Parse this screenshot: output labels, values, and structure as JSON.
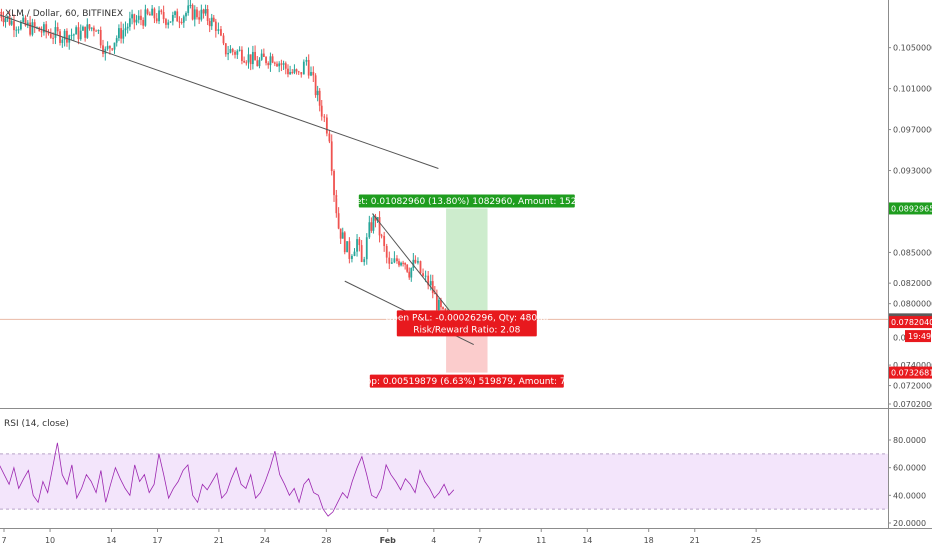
{
  "chart_data": {
    "type": "candlestick",
    "title": "XLM / Dollar, 60, BITFINEX",
    "price_axis": {
      "ticks": [
        {
          "value": 0.105,
          "label": "0.10500000"
        },
        {
          "value": 0.101,
          "label": "0.10100000"
        },
        {
          "value": 0.097,
          "label": "0.09700000"
        },
        {
          "value": 0.093,
          "label": "0.09300000"
        },
        {
          "value": 0.085,
          "label": "0.08500000"
        },
        {
          "value": 0.082,
          "label": "0.08200000"
        },
        {
          "value": 0.08,
          "label": "0.08000000"
        },
        {
          "value": 0.074,
          "label": "0.07400000"
        },
        {
          "value": 0.072,
          "label": "0.07200000"
        },
        {
          "value": 0.0702,
          "label": "0.07020000"
        }
      ],
      "tags": [
        {
          "value": 0.08929656,
          "label": "0.08929656",
          "color": "#1f9d1f"
        },
        {
          "value": 0.07846696,
          "label": "0.07846696",
          "color": "#5b5b5b"
        },
        {
          "value": 0.0782,
          "label": "0.07820400",
          "color": "#e8191e"
        },
        {
          "value": 0.07326817,
          "label": "0.07326817",
          "color": "#e8191e"
        }
      ],
      "countdown": {
        "label": "19:49",
        "color": "#e8191e"
      },
      "clipped_tick": {
        "value": 0.0767,
        "label": "0.07"
      }
    },
    "time_axis": {
      "ticks": [
        {
          "label": "7",
          "day": 7
        },
        {
          "label": "10",
          "day": 10
        },
        {
          "label": "14",
          "day": 14
        },
        {
          "label": "17",
          "day": 17
        },
        {
          "label": "21",
          "day": 21
        },
        {
          "label": "24",
          "day": 24
        },
        {
          "label": "28",
          "day": 28
        },
        {
          "label": "Feb",
          "day": 32
        },
        {
          "label": "4",
          "day": 35
        },
        {
          "label": "7",
          "day": 38
        },
        {
          "label": "11",
          "day": 42
        },
        {
          "label": "14",
          "day": 45
        },
        {
          "label": "18",
          "day": 49
        },
        {
          "label": "21",
          "day": 52
        },
        {
          "label": "25",
          "day": 56
        }
      ]
    },
    "price_path": [
      [
        6.7,
        0.1085
      ],
      [
        7.5,
        0.1075
      ],
      [
        9,
        0.1068
      ],
      [
        10.5,
        0.1062
      ],
      [
        12,
        0.1064
      ],
      [
        13,
        0.1072
      ],
      [
        13.6,
        0.1045
      ],
      [
        14.2,
        0.1058
      ],
      [
        15.2,
        0.1074
      ],
      [
        16.5,
        0.1081
      ],
      [
        18,
        0.1078
      ],
      [
        19,
        0.1085
      ],
      [
        20,
        0.1082
      ],
      [
        20.8,
        0.1072
      ],
      [
        21.3,
        0.1048
      ],
      [
        22.5,
        0.1045
      ],
      [
        23.5,
        0.1035
      ],
      [
        24.5,
        0.1042
      ],
      [
        25.5,
        0.1028
      ],
      [
        26.2,
        0.1022
      ],
      [
        26.7,
        0.1038
      ],
      [
        27.3,
        0.1008
      ],
      [
        27.7,
        0.0988
      ],
      [
        28.2,
        0.0965
      ],
      [
        28.5,
        0.091
      ],
      [
        28.8,
        0.0875
      ],
      [
        29.2,
        0.0858
      ],
      [
        29.5,
        0.0848
      ],
      [
        30,
        0.0862
      ],
      [
        30.3,
        0.0838
      ],
      [
        30.8,
        0.0872
      ],
      [
        31.2,
        0.0885
      ],
      [
        31.6,
        0.0862
      ],
      [
        32.1,
        0.0835
      ],
      [
        32.6,
        0.0842
      ],
      [
        33,
        0.0845
      ],
      [
        33.4,
        0.0832
      ],
      [
        33.8,
        0.084
      ],
      [
        34.3,
        0.0825
      ],
      [
        34.8,
        0.0818
      ],
      [
        35.2,
        0.08
      ],
      [
        35.6,
        0.0788
      ],
      [
        35.9,
        0.078
      ],
      [
        36.3,
        0.0785
      ]
    ],
    "rsi": {
      "title": "RSI (14, close)",
      "ticks": [
        {
          "value": 80,
          "label": "80.0000"
        },
        {
          "value": 60,
          "label": "60.0000"
        },
        {
          "value": 40,
          "label": "40.0000"
        },
        {
          "value": 20,
          "label": "20.0000"
        }
      ],
      "band": [
        30,
        70
      ],
      "values": [
        62,
        55,
        48,
        60,
        45,
        52,
        58,
        40,
        35,
        50,
        42,
        60,
        78,
        55,
        48,
        62,
        38,
        45,
        55,
        50,
        42,
        58,
        35,
        48,
        60,
        52,
        45,
        40,
        62,
        50,
        55,
        42,
        48,
        70,
        55,
        38,
        45,
        50,
        58,
        62,
        40,
        35,
        48,
        44,
        50,
        56,
        38,
        42,
        52,
        60,
        48,
        45,
        55,
        38,
        42,
        50,
        60,
        72,
        55,
        48,
        40,
        45,
        35,
        48,
        52,
        42,
        40,
        30,
        25,
        28,
        35,
        42,
        38,
        50,
        60,
        68,
        55,
        40,
        38,
        45,
        62,
        55,
        50,
        44,
        52,
        48,
        42,
        58,
        50,
        45,
        38,
        42,
        48,
        40,
        44
      ]
    },
    "trendlines": [
      {
        "name": "upper-descending-line",
        "from": [
          6.7,
          0.1082
        ],
        "to": [
          35.3,
          0.0932
        ]
      },
      {
        "name": "wedge-top-line",
        "from": [
          31.0,
          0.0888
        ],
        "to": [
          36.4,
          0.0786
        ]
      },
      {
        "name": "wedge-bottom-line",
        "from": [
          29.2,
          0.0822
        ],
        "to": [
          37.6,
          0.076
        ]
      }
    ],
    "position": {
      "entry": 0.07846696,
      "target_price": 0.08929656,
      "stop_price": 0.07326817,
      "x_start": 35.8,
      "x_end": 38.5,
      "target_label": "Target: 0.01082960 (13.80%) 1082960, Amount: 1520.77",
      "pnl_label": "Open P&L: -0.00026296, Qty: 48088",
      "rr_label": "Risk/Reward Ratio: 2.08",
      "stop_label": "Stop: 0.00519879 (6.63%) 519879, Amount: 750"
    },
    "colors": {
      "up_candle": "#26a69a",
      "down_candle": "#ef5350",
      "target_zone": "#c8eac8",
      "stop_zone": "#fbc7c7",
      "target_label_bg": "#1f9d1f",
      "stop_label_bg": "#e8191e",
      "rsi_line": "#9c27b0",
      "rsi_band": "#f3e5fb",
      "last_price_line": "#e9b9a6"
    }
  }
}
